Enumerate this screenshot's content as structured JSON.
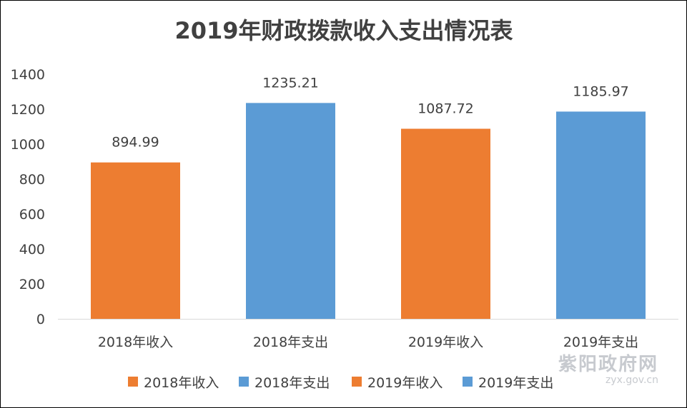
{
  "chart_data": {
    "type": "bar",
    "title": "2019年财政拨款收入支出情况表",
    "xlabel": "",
    "ylabel": "",
    "categories": [
      "2018年收入",
      "2018年支出",
      "2019年收入",
      "2019年支出"
    ],
    "values": [
      894.99,
      1235.21,
      1087.72,
      1185.97
    ],
    "value_labels": [
      "894.99",
      "1235.21",
      "1087.72",
      "1185.97"
    ],
    "bar_colors": [
      "#ED7D31",
      "#5B9BD5",
      "#ED7D31",
      "#5B9BD5"
    ],
    "ylim": [
      0,
      1400
    ],
    "yticks": [
      "0",
      "200",
      "400",
      "600",
      "800",
      "1000",
      "1200",
      "1400"
    ],
    "ytick_values": [
      0,
      200,
      400,
      600,
      800,
      1000,
      1200,
      1400
    ],
    "grid": false,
    "legend": {
      "placement": "bottom",
      "entries": [
        {
          "label": "2018年收入",
          "color": "#ED7D31"
        },
        {
          "label": "2018年支出",
          "color": "#5B9BD5"
        },
        {
          "label": "2019年收入",
          "color": "#ED7D31"
        },
        {
          "label": "2019年支出",
          "color": "#5B9BD5"
        }
      ]
    }
  },
  "watermark": {
    "name": "紫阳政府网",
    "domain": "zyx.gov.cn"
  },
  "colors": {
    "income": "#ED7D31",
    "expense": "#5B9BD5",
    "text": "#404040",
    "axis": "#D9D9D9"
  }
}
